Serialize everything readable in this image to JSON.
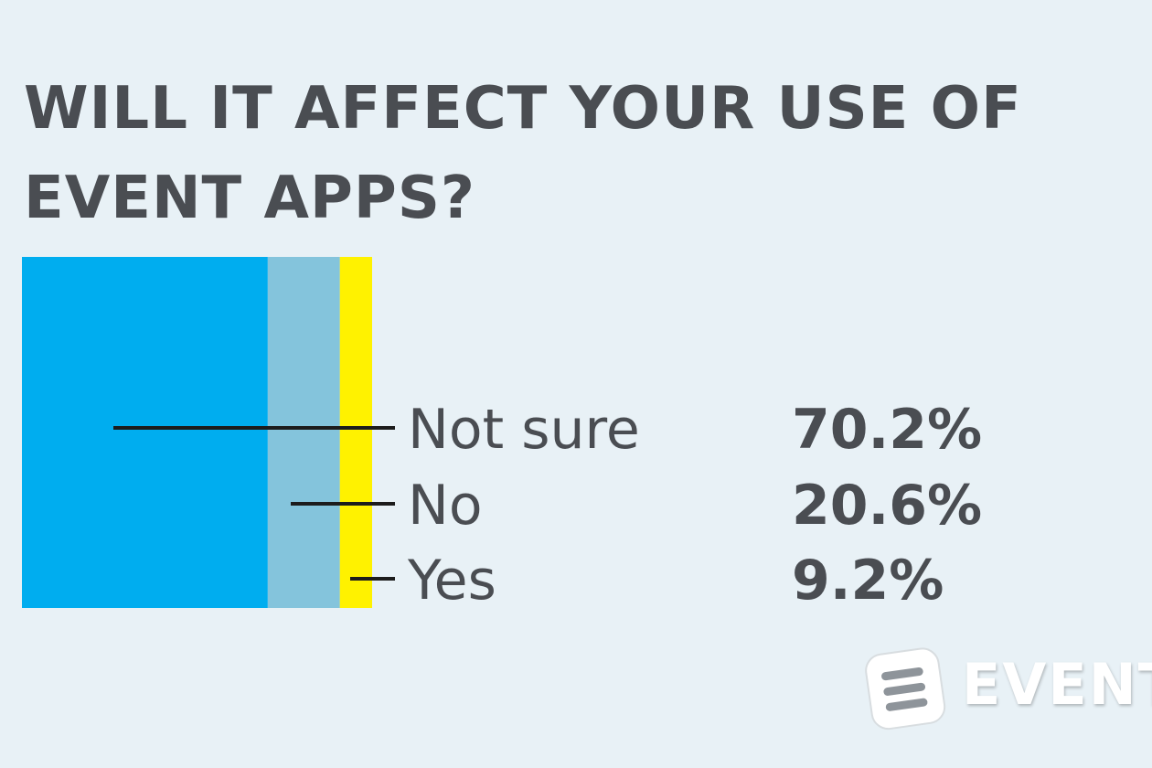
{
  "title": "WILL IT AFFECT YOUR USE OF EVENT APPS?",
  "brand": {
    "logo_text": "EVENT"
  },
  "colors": {
    "background": "#e8f1f6",
    "text": "#4a4d52",
    "leader_line": "#1c1c1c"
  },
  "chart_data": {
    "type": "bar",
    "stacked": true,
    "orientation": "horizontal",
    "unit": "%",
    "series": [
      {
        "label": "Not sure",
        "value": 70.2,
        "value_label": "70.2%",
        "color": "#00adef"
      },
      {
        "label": "No",
        "value": 20.6,
        "value_label": "20.6%",
        "color": "#84c4dc"
      },
      {
        "label": "Yes",
        "value": 9.2,
        "value_label": "9.2%",
        "color": "#fff200"
      }
    ]
  }
}
